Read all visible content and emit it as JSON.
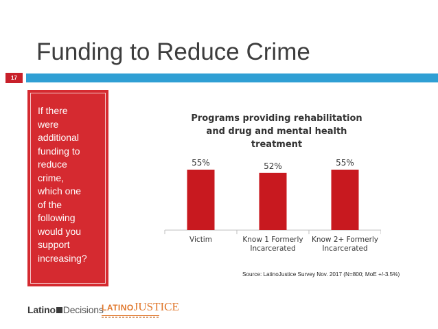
{
  "slide": {
    "title": "Funding to Reduce Crime",
    "number": "17"
  },
  "question": {
    "lines": [
      "If there",
      "were",
      "additional",
      "funding to",
      "reduce",
      "crime,",
      "which one",
      "of the",
      "following",
      "would you",
      "support",
      "increasing?"
    ]
  },
  "chart_data": {
    "type": "bar",
    "title_lines": [
      "Programs providing rehabilitation",
      "and drug and mental health",
      "treatment"
    ],
    "categories": [
      [
        "Victim"
      ],
      [
        "Know 1 Formerly",
        "Incarcerated"
      ],
      [
        "Know 2+ Formerly",
        "Incarcerated"
      ]
    ],
    "values": [
      55,
      52,
      55
    ],
    "value_labels": [
      "55%",
      "52%",
      "55%"
    ],
    "ylim": [
      0,
      100
    ],
    "grid": false,
    "bar_color": "#c8191f"
  },
  "source": "Source: LatinoJustice Survey Nov. 2017 (N=800; MoE +/-3.5%)",
  "logos": {
    "latino_decisions": [
      "Latino",
      "Decisions"
    ],
    "latinojustice": [
      "LATINO",
      "JUSTICE"
    ]
  },
  "colors": {
    "accent_blue": "#2f9fd4",
    "accent_red": "#d52a30"
  }
}
